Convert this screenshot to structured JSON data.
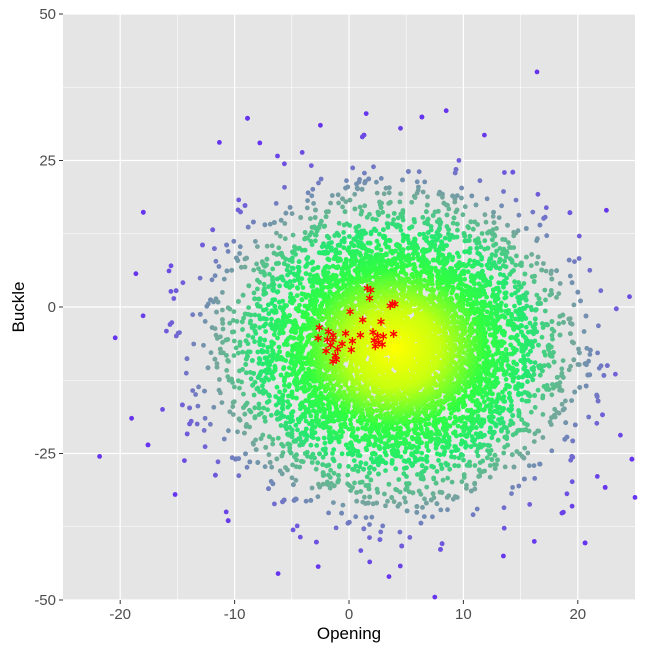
{
  "chart_data": {
    "type": "scatter",
    "title": "",
    "xlabel": "Opening",
    "ylabel": "Buckle",
    "xlim": [
      -25,
      25
    ],
    "ylim": [
      -50,
      50
    ],
    "x_ticks": [
      -20,
      -10,
      0,
      10,
      20
    ],
    "x_tick_labels": [
      "-20",
      "-10",
      "0",
      "10",
      "20"
    ],
    "y_ticks": [
      50,
      25,
      0,
      -25,
      -50
    ],
    "y_tick_labels": [
      "50",
      "25",
      "0",
      "-25",
      "-50"
    ],
    "grid": true,
    "legend": "none",
    "background_color": "#e5e5e5",
    "grid_color": "#ffffff",
    "density_cloud": {
      "description_of_distribution": "bivariate normal point cloud, colored by density (yellow center -> green -> gray-blue -> purple outliers)",
      "center": [
        4,
        -7
      ],
      "sd": [
        6.5,
        11
      ],
      "point_count": 9000,
      "color_stops": [
        "#ffff00",
        "#c8ff10",
        "#30ff40",
        "#25e870",
        "#74a89b",
        "#7060d8",
        "#6633ee"
      ]
    },
    "outliers": [
      {
        "x": -21.8,
        "y": -25.5
      },
      {
        "x": -19,
        "y": -19
      },
      {
        "x": -15.2,
        "y": -32
      },
      {
        "x": -18,
        "y": -1.5
      },
      {
        "x": 8.5,
        "y": 33.5
      },
      {
        "x": 1.5,
        "y": 33
      },
      {
        "x": -2.5,
        "y": 31
      },
      {
        "x": 4.5,
        "y": 30.5
      },
      {
        "x": -7.8,
        "y": 28
      },
      {
        "x": 22.5,
        "y": 16.5
      },
      {
        "x": 25,
        "y": -32.5
      },
      {
        "x": 7.5,
        "y": -49.5
      },
      {
        "x": -6.2,
        "y": -45.5
      },
      {
        "x": 3.5,
        "y": -46
      },
      {
        "x": 19.5,
        "y": -34
      },
      {
        "x": 16.2,
        "y": -40
      },
      {
        "x": 13.5,
        "y": -42.5
      }
    ],
    "highlight_series": {
      "marker": "asterisk",
      "color": "#ff0000",
      "points": [
        {
          "x": 1.6,
          "y": 3.2
        },
        {
          "x": 1.9,
          "y": 2.9
        },
        {
          "x": 1.8,
          "y": 1.5
        },
        {
          "x": 3.8,
          "y": 0.6
        },
        {
          "x": 3.6,
          "y": 0.2
        },
        {
          "x": 4.0,
          "y": 0.5
        },
        {
          "x": 0.1,
          "y": -0.8
        },
        {
          "x": 1.2,
          "y": -2.2
        },
        {
          "x": 2.8,
          "y": -2.5
        },
        {
          "x": -2.6,
          "y": -3.5
        },
        {
          "x": -1.8,
          "y": -4.2
        },
        {
          "x": -1.4,
          "y": -4.8
        },
        {
          "x": -0.3,
          "y": -4.5
        },
        {
          "x": 1.0,
          "y": -4.8
        },
        {
          "x": 2.1,
          "y": -4.3
        },
        {
          "x": 2.5,
          "y": -4.9
        },
        {
          "x": 3.0,
          "y": -5.0
        },
        {
          "x": 3.9,
          "y": -4.6
        },
        {
          "x": -2.7,
          "y": -5.3
        },
        {
          "x": -1.9,
          "y": -5.6
        },
        {
          "x": -1.4,
          "y": -5.6
        },
        {
          "x": 0.3,
          "y": -5.8
        },
        {
          "x": 2.2,
          "y": -5.7
        },
        {
          "x": 2.6,
          "y": -6.0
        },
        {
          "x": -1.6,
          "y": -6.5
        },
        {
          "x": -0.6,
          "y": -6.3
        },
        {
          "x": 2.3,
          "y": -6.7
        },
        {
          "x": 2.9,
          "y": -6.4
        },
        {
          "x": -1.0,
          "y": -7.2
        },
        {
          "x": 0.2,
          "y": -7.3
        },
        {
          "x": -2.0,
          "y": -7.5
        },
        {
          "x": -1.2,
          "y": -8.3
        },
        {
          "x": -1.1,
          "y": -9.0
        },
        {
          "x": -1.4,
          "y": -9.3
        }
      ]
    }
  }
}
